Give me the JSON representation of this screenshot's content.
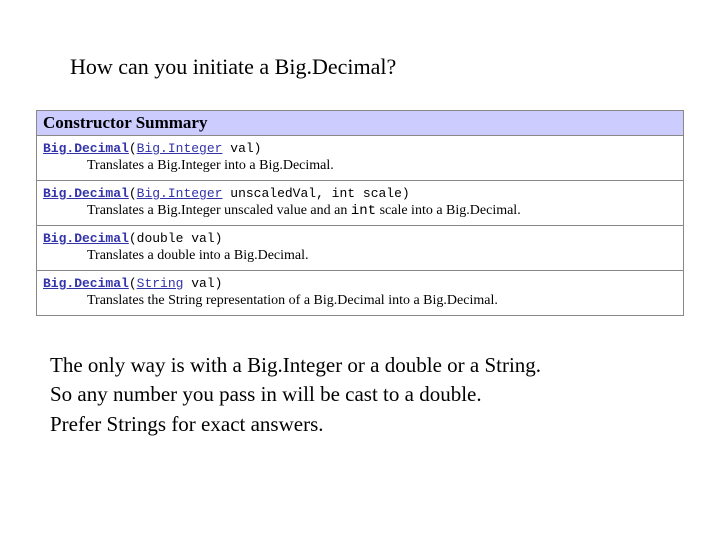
{
  "question": "How can you initiate a Big.Decimal?",
  "summary_header": "Constructor Summary",
  "colors": {
    "header_bg": "#ccccff",
    "border": "#888888",
    "link": "#3333aa",
    "text": "#000000"
  },
  "constructors": [
    {
      "class_name": "Big.Decimal",
      "paren_open": "(",
      "type_link": "Big.Integer",
      "params_rest": " val)",
      "desc_pre": "Translates a Big.Integer into a Big.Decimal.",
      "desc_code": "",
      "desc_post": ""
    },
    {
      "class_name": "Big.Decimal",
      "paren_open": "(",
      "type_link": "Big.Integer",
      "params_rest": " unscaledVal, int scale)",
      "desc_pre": "Translates a Big.Integer unscaled value and an ",
      "desc_code": "int",
      "desc_post": " scale into a Big.Decimal."
    },
    {
      "class_name": "Big.Decimal",
      "paren_open": "(",
      "type_link": "",
      "params_rest": "double val)",
      "desc_pre": "Translates a double into a Big.Decimal.",
      "desc_code": "",
      "desc_post": ""
    },
    {
      "class_name": "Big.Decimal",
      "paren_open": "(",
      "type_link": "String",
      "params_rest": " val)",
      "desc_pre": "Translates the String representation of a Big.Decimal into a Big.Decimal.",
      "desc_code": "",
      "desc_post": ""
    }
  ],
  "notes": {
    "line1": "The only way is with a Big.Integer or a double or a String.",
    "line2": "So any number you pass in will be cast to a double.",
    "line3": "Prefer Strings for exact answers."
  }
}
